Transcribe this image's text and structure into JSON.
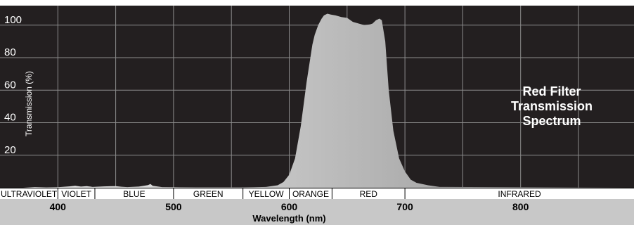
{
  "chart_data": {
    "type": "area",
    "title_lines": [
      "Red Filter",
      "Transmission",
      "Spectrum"
    ],
    "xlabel": "Wavelength (nm)",
    "ylabel": "Transmission (%)",
    "xlim": [
      350,
      898
    ],
    "ylim": [
      0,
      112
    ],
    "x_ticks": [
      400,
      500,
      600,
      700,
      800
    ],
    "y_ticks": [
      20,
      40,
      60,
      80,
      100
    ],
    "grid": true,
    "series": [
      {
        "x": [
          350,
          370,
          380,
          390,
          400,
          410,
          415,
          420,
          425,
          430,
          440,
          445,
          450,
          455,
          460,
          470,
          478,
          480,
          482,
          490,
          500,
          520,
          540,
          560,
          570,
          580,
          590,
          595,
          600,
          605,
          610,
          615,
          620,
          622,
          625,
          628,
          630,
          633,
          636,
          640,
          645,
          650,
          655,
          660,
          665,
          670,
          672,
          675,
          678,
          680,
          683,
          686,
          690,
          695,
          700,
          705,
          710,
          720,
          730,
          898
        ],
        "y": [
          0,
          0,
          0.4,
          0.2,
          0.3,
          0.8,
          1.2,
          0.7,
          1.0,
          0.5,
          0.8,
          0.9,
          1.0,
          0.6,
          0.4,
          0.7,
          1.6,
          2.3,
          1.2,
          0.4,
          0.3,
          0.2,
          0.2,
          0.2,
          0.3,
          0.5,
          1.5,
          3.5,
          8,
          18,
          38,
          65,
          88,
          94,
          100,
          104,
          106,
          107,
          106.5,
          106,
          105,
          104.5,
          102,
          101,
          100,
          100.5,
          101,
          103,
          104,
          103,
          90,
          60,
          35,
          18,
          10,
          5,
          3,
          1.5,
          0.5,
          0
        ]
      }
    ],
    "bands": [
      {
        "label": "ULTRAVIOLET",
        "start": 350,
        "end": 400
      },
      {
        "label": "VIOLET",
        "start": 400,
        "end": 432
      },
      {
        "label": "BLUE",
        "start": 432,
        "end": 500
      },
      {
        "label": "GREEN",
        "start": 500,
        "end": 560
      },
      {
        "label": "YELLOW",
        "start": 560,
        "end": 600
      },
      {
        "label": "ORANGE",
        "start": 600,
        "end": 637
      },
      {
        "label": "RED",
        "start": 637,
        "end": 700
      },
      {
        "label": "INFRARED",
        "start": 700,
        "end": 898
      }
    ],
    "colors": {
      "plot_background": "#231f20",
      "grid": "#8c8c8c",
      "area_light": "#f2f2f2",
      "area_dark": "#8a8a8a",
      "band_strip": "#ffffff",
      "axis_strip": "#c8c8c8"
    }
  }
}
